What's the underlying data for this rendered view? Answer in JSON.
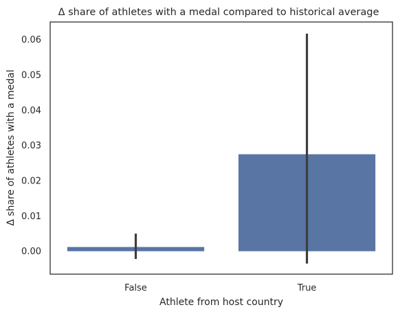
{
  "chart_data": {
    "type": "bar",
    "title": "Δ share of athletes with a medal compared to historical average",
    "xlabel": "Athlete from host country",
    "ylabel": "Δ share of athletes with a medal",
    "categories": [
      "False",
      "True"
    ],
    "values": [
      0.0012,
      0.0275
    ],
    "error_low": [
      -0.0022,
      -0.0035
    ],
    "error_high": [
      0.005,
      0.0617
    ],
    "ylim": [
      -0.0065,
      0.065
    ],
    "yticks": [
      0.0,
      0.01,
      0.02,
      0.03,
      0.04,
      0.05,
      0.06
    ],
    "ytick_labels": [
      "0.00",
      "0.01",
      "0.02",
      "0.03",
      "0.04",
      "0.05",
      "0.06"
    ],
    "grid": false,
    "bar_color": "#5975a4",
    "errorbar_color": "#3d3d3d"
  }
}
